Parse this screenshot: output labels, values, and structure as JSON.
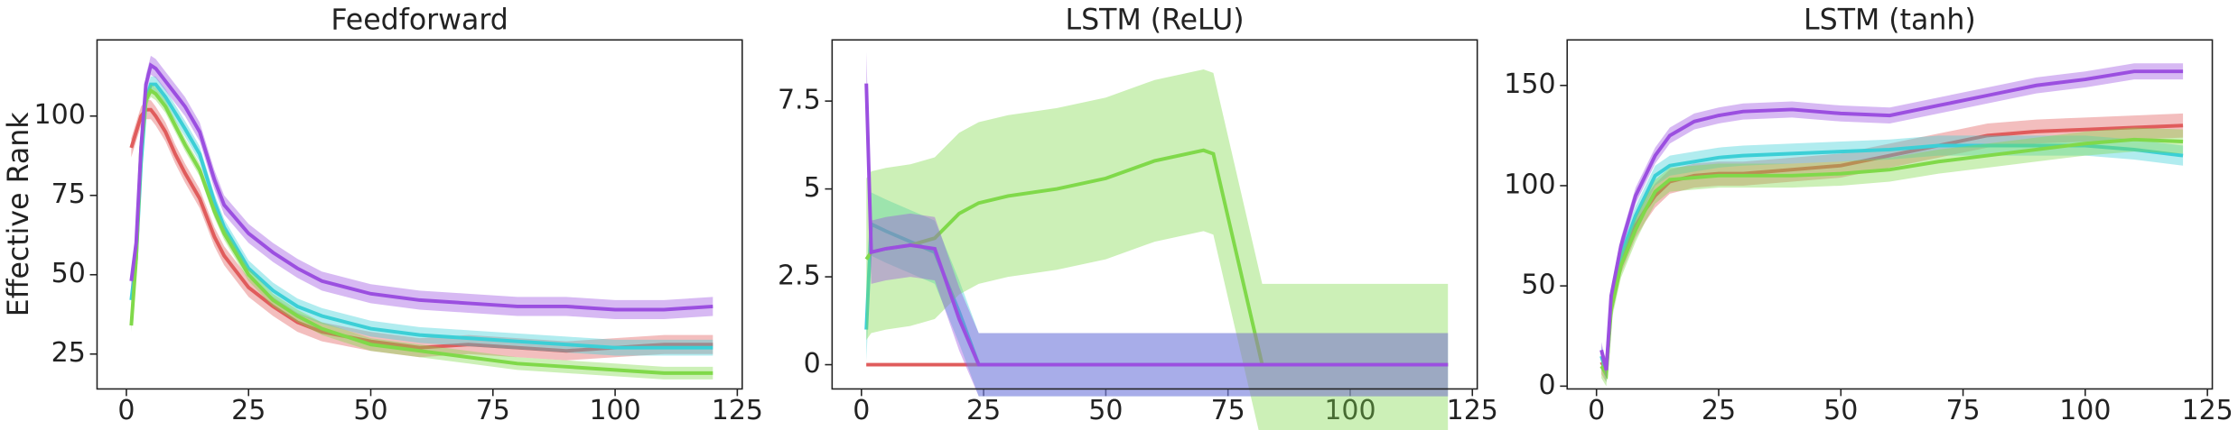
{
  "chart_data": [
    {
      "type": "line",
      "title": "Feedforward",
      "ylabel": "Effective Rank",
      "x": [
        1,
        2,
        3,
        4,
        5,
        6,
        8,
        10,
        12,
        15,
        18,
        20,
        25,
        30,
        35,
        40,
        50,
        60,
        70,
        80,
        90,
        100,
        110,
        120
      ],
      "xlim": [
        -6,
        126
      ],
      "xticks": [
        0,
        25,
        50,
        75,
        100,
        125
      ],
      "ylim": [
        14,
        124
      ],
      "yticks": [
        25,
        50,
        75,
        100
      ],
      "series": [
        {
          "color": "#e05c5c",
          "band": 3,
          "values": [
            90,
            95,
            100,
            102,
            102,
            100,
            95,
            88,
            82,
            74,
            62,
            56,
            46,
            40,
            35,
            32,
            29,
            27,
            28,
            27,
            26,
            27,
            28,
            28
          ]
        },
        {
          "color": "#3ccfd6",
          "band": 2.5,
          "values": [
            42,
            55,
            85,
            105,
            110,
            110,
            106,
            101,
            96,
            88,
            73,
            65,
            52,
            45,
            40,
            37,
            33,
            31,
            30,
            29,
            28,
            27,
            27,
            27
          ]
        },
        {
          "color": "#80d94a",
          "band": 2,
          "values": [
            34,
            55,
            90,
            105,
            108,
            107,
            103,
            97,
            91,
            83,
            70,
            63,
            50,
            42,
            37,
            33,
            28,
            26,
            24,
            22,
            21,
            20,
            19,
            19
          ]
        },
        {
          "color": "#9b4fe0",
          "band": 3,
          "values": [
            48,
            60,
            90,
            110,
            116,
            115,
            111,
            107,
            103,
            95,
            80,
            72,
            63,
            57,
            52,
            48,
            44,
            42,
            41,
            40,
            40,
            39,
            39,
            40
          ]
        }
      ]
    },
    {
      "type": "line",
      "title": "LSTM (ReLU)",
      "x": [
        1,
        2,
        5,
        10,
        15,
        20,
        24,
        30,
        40,
        50,
        60,
        70,
        72,
        80,
        82,
        90,
        100,
        110,
        120
      ],
      "xlim": [
        -6,
        126
      ],
      "xticks": [
        0,
        25,
        50,
        75,
        100,
        125
      ],
      "ylim": [
        -0.69,
        9.24
      ],
      "yticks": [
        0,
        2.5,
        5,
        7.5
      ],
      "series": [
        {
          "color": "#e05c5c",
          "band": 0.05,
          "values": [
            0,
            0,
            0,
            0,
            0,
            0,
            0,
            0,
            0,
            0,
            0,
            0,
            0,
            0,
            0,
            0,
            0,
            0,
            0
          ]
        },
        {
          "color": "#3ccfd6",
          "band": 0.9,
          "values": [
            1,
            4,
            3.8,
            3.5,
            3.2,
            1.5,
            0,
            0,
            0,
            0,
            0,
            0,
            0,
            0,
            0,
            0,
            0,
            0,
            0
          ]
        },
        {
          "color": "#80d94a",
          "band": 2.3,
          "values": [
            3,
            3.2,
            3.3,
            3.4,
            3.6,
            4.3,
            4.6,
            4.8,
            5,
            5.3,
            5.8,
            6.1,
            6,
            1.2,
            0,
            0,
            0,
            0,
            0
          ]
        },
        {
          "color": "#9b4fe0",
          "band": 0.9,
          "values": [
            8,
            3.2,
            3.3,
            3.4,
            3.3,
            1.3,
            0,
            0,
            0,
            0,
            0,
            0,
            0,
            0,
            0,
            0,
            0,
            0,
            0
          ]
        }
      ]
    },
    {
      "type": "line",
      "title": "LSTM (tanh)",
      "x": [
        1,
        2,
        3,
        5,
        8,
        10,
        12,
        15,
        20,
        25,
        30,
        40,
        50,
        60,
        70,
        80,
        90,
        100,
        110,
        120
      ],
      "xlim": [
        -6,
        126
      ],
      "xticks": [
        0,
        25,
        50,
        75,
        100,
        125
      ],
      "ylim": [
        -1.4,
        172.7
      ],
      "yticks": [
        0,
        50,
        100,
        150
      ],
      "series": [
        {
          "color": "#e05c5c",
          "band": 6,
          "values": [
            12,
            8,
            40,
            62,
            80,
            88,
            95,
            102,
            105,
            106,
            106,
            108,
            110,
            115,
            120,
            125,
            127,
            128,
            129,
            130
          ]
        },
        {
          "color": "#3ccfd6",
          "band": 5,
          "values": [
            15,
            7,
            40,
            65,
            85,
            95,
            105,
            110,
            112,
            114,
            115,
            116,
            117,
            118,
            120,
            120,
            120,
            120,
            118,
            115
          ]
        },
        {
          "color": "#80d94a",
          "band": 6,
          "values": [
            10,
            6,
            38,
            60,
            78,
            88,
            97,
            103,
            104,
            105,
            105,
            105,
            106,
            108,
            112,
            115,
            118,
            121,
            123,
            122
          ]
        },
        {
          "color": "#9b4fe0",
          "band": 4,
          "values": [
            18,
            8,
            45,
            70,
            95,
            105,
            115,
            125,
            132,
            135,
            137,
            138,
            136,
            135,
            140,
            145,
            150,
            153,
            157,
            157
          ]
        }
      ]
    }
  ]
}
